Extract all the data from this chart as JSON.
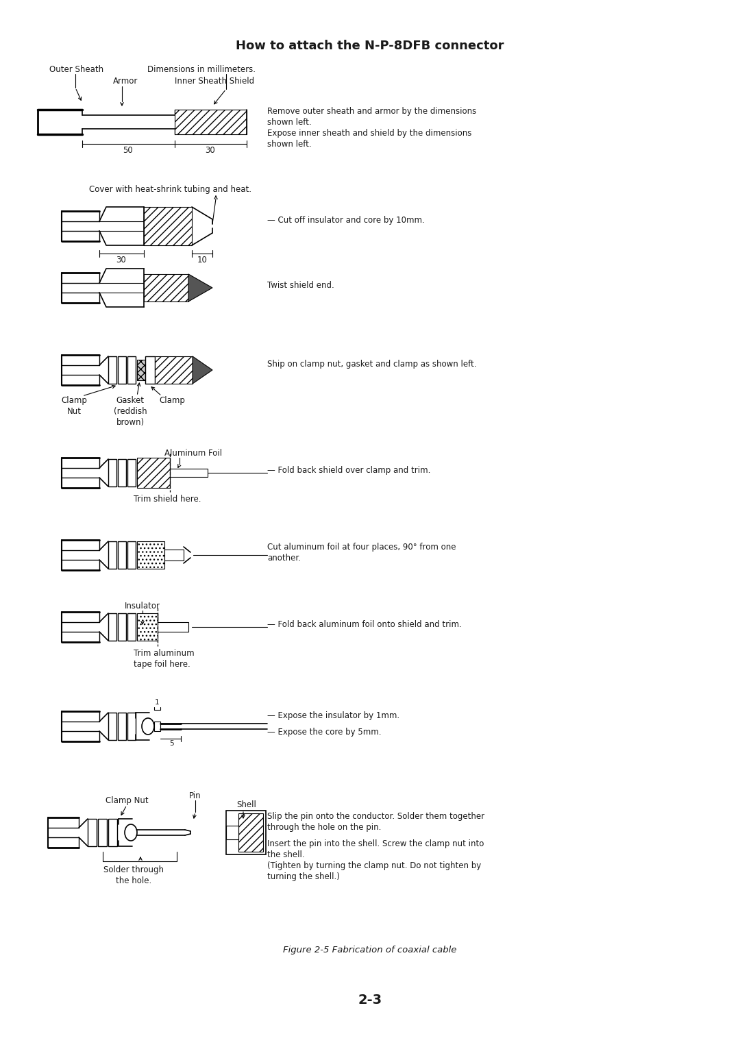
{
  "title": "How to attach the N-P-8DFB connector",
  "bg_color": "#ffffff",
  "text_color": "#1a1a1a",
  "page_number": "2-3",
  "figure_caption": "Figure 2-5 Fabrication of coaxial cable",
  "label_outer_sheath": "Outer Sheath",
  "label_armor": "Armor",
  "label_dim": "Dimensions in millimeters.",
  "label_inner_sheath_shield": "Inner Sheath Shield",
  "label_cover": "Cover with heat-shrink tubing and heat.",
  "label_clamp_nut": "Clamp\nNut",
  "label_gasket": "Gasket\n(reddish\nbrown)",
  "label_clamp": "Clamp",
  "label_aluminum_foil": "Aluminum Foil",
  "label_trim_shield": "Trim shield here.",
  "label_insulator": "Insulator",
  "label_trim_al": "Trim aluminum\ntape foil here.",
  "label_clamp_nut2": "Clamp Nut",
  "label_pin": "Pin",
  "label_shell": "Shell",
  "label_solder": "Solder through\nthe hole.",
  "desc1": "Remove outer sheath and armor by the dimensions\nshown left.\nExpose inner sheath and shield by the dimensions\nshown left.",
  "desc2": "Cut off insulator and core by 10mm.",
  "desc3": "Twist shield end.",
  "desc4": "Ship on clamp nut, gasket and clamp as shown left.",
  "desc5": "Fold back shield over clamp and trim.",
  "desc6a": "Cut aluminum foil at four places, 90° from one\nanother.",
  "desc6b": "Fold back aluminum foil onto shield and trim.",
  "desc7a": "Expose the insulator by 1mm.",
  "desc7b": "Expose the core by 5mm.",
  "desc8a": "Slip the pin onto the conductor. Solder them together\nthrough the hole on the pin.",
  "desc8b": "Insert the pin into the shell. Screw the clamp nut into\nthe shell.\n(Tighten by turning the clamp nut. Do not tighten by\nturning the shell.)"
}
